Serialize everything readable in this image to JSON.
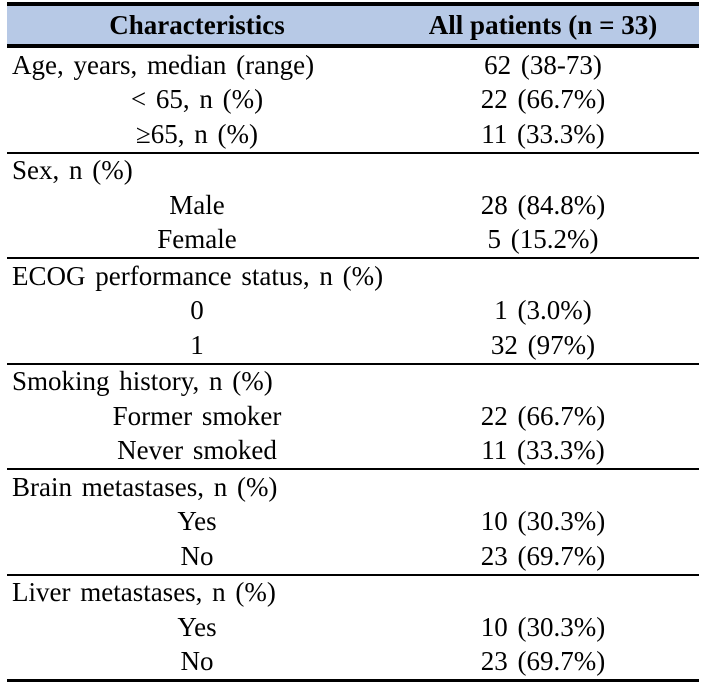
{
  "table": {
    "header": {
      "characteristics_label": "Characteristics",
      "patients_label": "All patients (n = 33)"
    },
    "header_bg_color": "#b7c9e6",
    "rule_color": "#000000",
    "rows": [
      {
        "label": "Age, years, median (range)",
        "value": "62 (38-73)",
        "type": "section"
      },
      {
        "label": "< 65, n (%)",
        "value": "22 (66.7%)",
        "type": "sub"
      },
      {
        "label": "≥65, n (%)",
        "value": "11 (33.3%)",
        "type": "sub"
      },
      {
        "label": "Sex, n (%)",
        "value": "",
        "type": "section"
      },
      {
        "label": "Male",
        "value": "28 (84.8%)",
        "type": "sub"
      },
      {
        "label": "Female",
        "value": "5 (15.2%)",
        "type": "sub"
      },
      {
        "label": "ECOG performance status, n (%)",
        "value": "",
        "type": "section"
      },
      {
        "label": "0",
        "value": "1 (3.0%)",
        "type": "sub"
      },
      {
        "label": "1",
        "value": "32 (97%)",
        "type": "sub"
      },
      {
        "label": "Smoking history, n (%)",
        "value": "",
        "type": "section"
      },
      {
        "label": "Former smoker",
        "value": "22 (66.7%)",
        "type": "sub"
      },
      {
        "label": "Never smoked",
        "value": "11 (33.3%)",
        "type": "sub"
      },
      {
        "label": "Brain metastases, n (%)",
        "value": "",
        "type": "section"
      },
      {
        "label": "Yes",
        "value": "10 (30.3%)",
        "type": "sub"
      },
      {
        "label": "No",
        "value": "23 (69.7%)",
        "type": "sub"
      },
      {
        "label": "Liver metastases, n (%)",
        "value": "",
        "type": "section"
      },
      {
        "label": "Yes",
        "value": "10 (30.3%)",
        "type": "sub"
      },
      {
        "label": "No",
        "value": "23 (69.7%)",
        "type": "sub"
      }
    ]
  }
}
